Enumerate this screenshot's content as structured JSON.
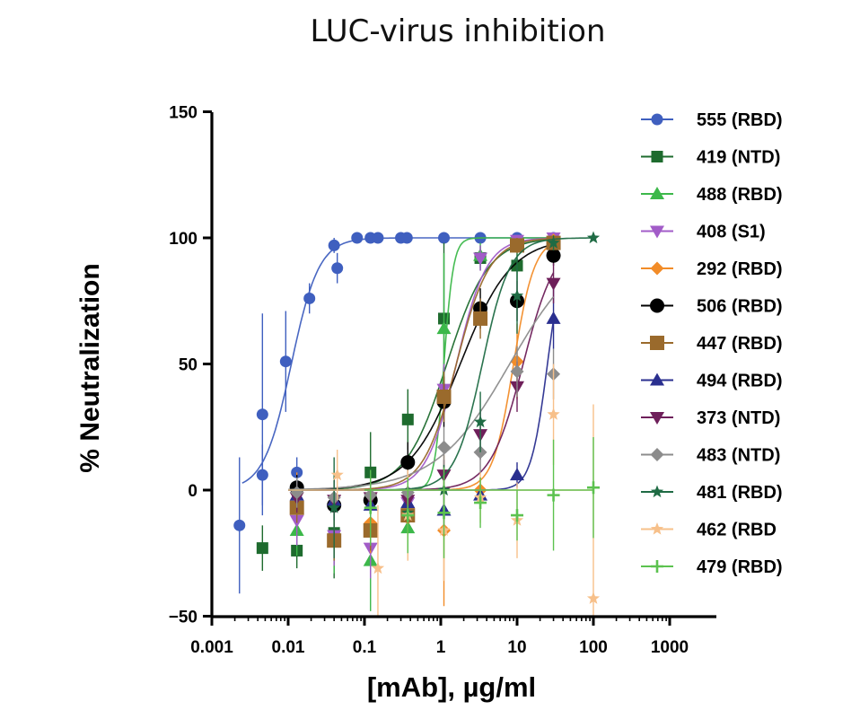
{
  "chart_data": {
    "type": "scatter",
    "title": "LUC-virus inhibition",
    "xlabel": "[mAb], µg/ml",
    "ylabel": "% Neutralization",
    "xscale": "log",
    "xlim": [
      0.001,
      1000
    ],
    "ylim": [
      -50,
      150
    ],
    "xticks": [
      {
        "value": 0.001,
        "label": "0.001"
      },
      {
        "value": 0.01,
        "label": "0.01"
      },
      {
        "value": 0.1,
        "label": "0.1"
      },
      {
        "value": 1,
        "label": "1"
      },
      {
        "value": 10,
        "label": "10"
      },
      {
        "value": 100,
        "label": "100"
      },
      {
        "value": 1000,
        "label": "1000"
      }
    ],
    "yticks": [
      {
        "value": -50,
        "label": "−50"
      },
      {
        "value": 0,
        "label": "0"
      },
      {
        "value": 50,
        "label": "50"
      },
      {
        "value": 100,
        "label": "100"
      },
      {
        "value": 150,
        "label": "150"
      }
    ],
    "legend_position": "right",
    "series": [
      {
        "name": "555 (RBD)",
        "color": "#3f5fbf",
        "marker": "circle",
        "ec50": 0.011,
        "hill": 2.4,
        "fit_range": [
          0.0025,
          30
        ],
        "points": [
          [
            0.0023,
            -14,
            27
          ],
          [
            0.0046,
            6,
            12
          ],
          [
            0.0046,
            30,
            40
          ],
          [
            0.0093,
            51,
            20
          ],
          [
            0.013,
            7,
            6
          ],
          [
            0.019,
            76,
            6
          ],
          [
            0.04,
            97,
            3
          ],
          [
            0.044,
            88,
            6
          ],
          [
            0.08,
            100,
            1
          ],
          [
            0.12,
            100,
            1
          ],
          [
            0.15,
            100,
            1
          ],
          [
            0.3,
            100,
            1
          ],
          [
            0.36,
            100,
            1
          ],
          [
            1.1,
            100,
            1
          ],
          [
            3.3,
            100,
            1
          ],
          [
            10,
            100,
            1
          ],
          [
            30,
            100,
            1
          ]
        ]
      },
      {
        "name": "419 (NTD)",
        "color": "#1e6b2e",
        "marker": "square",
        "ec50": 1.2,
        "hill": 1.6,
        "fit_range": [
          0.01,
          30
        ],
        "points": [
          [
            0.0046,
            -23,
            9
          ],
          [
            0.013,
            -24,
            7
          ],
          [
            0.04,
            -17,
            18
          ],
          [
            0.12,
            7,
            16
          ],
          [
            0.37,
            28,
            12
          ],
          [
            1.1,
            68,
            30
          ],
          [
            3.3,
            92,
            5
          ],
          [
            10,
            89,
            6
          ],
          [
            30,
            98,
            3
          ]
        ]
      },
      {
        "name": "488 (RBD)",
        "color": "#3cb84a",
        "marker": "triangle-up",
        "ec50": 1.1,
        "hill": 7,
        "fit_range": [
          0.01,
          30
        ],
        "points": [
          [
            0.013,
            -16,
            10
          ],
          [
            0.04,
            -20,
            13
          ],
          [
            0.12,
            -28,
            20
          ],
          [
            0.37,
            -15,
            10
          ],
          [
            1.1,
            64,
            30
          ],
          [
            3.3,
            93,
            5
          ],
          [
            10,
            98,
            3
          ],
          [
            30,
            99,
            2
          ]
        ]
      },
      {
        "name": "408 (S1)",
        "color": "#a25cc8",
        "marker": "triangle-down",
        "ec50": 1.6,
        "hill": 2.2,
        "fit_range": [
          0.01,
          30
        ],
        "points": [
          [
            0.013,
            -12,
            10
          ],
          [
            0.04,
            -18,
            12
          ],
          [
            0.12,
            -23,
            12
          ],
          [
            0.37,
            -5,
            10
          ],
          [
            1.1,
            40,
            10
          ],
          [
            3.3,
            92,
            5
          ],
          [
            10,
            99,
            2
          ],
          [
            30,
            100,
            1
          ]
        ]
      },
      {
        "name": "292 (RBD)",
        "color": "#f28c28",
        "marker": "diamond",
        "ec50": 9,
        "hill": 3.2,
        "fit_range": [
          0.01,
          30
        ],
        "points": [
          [
            0.013,
            1,
            6
          ],
          [
            0.04,
            -6,
            8
          ],
          [
            0.12,
            -13,
            12
          ],
          [
            0.37,
            -11,
            10
          ],
          [
            1.1,
            -16,
            30
          ],
          [
            3.3,
            0,
            5
          ],
          [
            10,
            51,
            15
          ],
          [
            30,
            99,
            2
          ]
        ]
      },
      {
        "name": "506 (RBD)",
        "color": "#000000",
        "marker": "circle-large",
        "ec50": 1.8,
        "hill": 1.3,
        "fit_range": [
          0.01,
          30
        ],
        "points": [
          [
            0.013,
            1,
            5
          ],
          [
            0.04,
            -6,
            6
          ],
          [
            0.12,
            -4,
            6
          ],
          [
            0.37,
            11,
            8
          ],
          [
            1.1,
            35,
            10
          ],
          [
            3.3,
            72,
            8
          ],
          [
            10,
            75,
            8
          ],
          [
            30,
            93,
            4
          ]
        ]
      },
      {
        "name": "447 (RBD)",
        "color": "#9a6a2c",
        "marker": "square-large",
        "ec50": 1.6,
        "hill": 2.0,
        "fit_range": [
          0.01,
          30
        ],
        "points": [
          [
            0.013,
            -7,
            6
          ],
          [
            0.04,
            -20,
            8
          ],
          [
            0.12,
            -16,
            8
          ],
          [
            0.37,
            -10,
            6
          ],
          [
            1.1,
            37,
            10
          ],
          [
            3.3,
            68,
            8
          ],
          [
            10,
            97,
            3
          ],
          [
            30,
            98,
            2
          ]
        ]
      },
      {
        "name": "494 (RBD)",
        "color": "#2a2f8f",
        "marker": "triangle-up",
        "ec50": 25,
        "hill": 4,
        "fit_range": [
          0.01,
          30
        ],
        "points": [
          [
            0.013,
            -2,
            6
          ],
          [
            0.04,
            -4,
            8
          ],
          [
            0.12,
            -6,
            6
          ],
          [
            0.37,
            -5,
            6
          ],
          [
            1.1,
            -8,
            8
          ],
          [
            3.3,
            -2,
            4
          ],
          [
            10,
            6,
            5
          ],
          [
            30,
            68,
            12
          ]
        ]
      },
      {
        "name": "373 (NTD)",
        "color": "#6e1f5a",
        "marker": "triangle-down",
        "ec50": 12,
        "hill": 2.0,
        "fit_range": [
          0.01,
          30
        ],
        "points": [
          [
            0.013,
            -3,
            6
          ],
          [
            0.04,
            -4,
            8
          ],
          [
            0.12,
            -3,
            6
          ],
          [
            0.37,
            -4,
            6
          ],
          [
            1.1,
            6,
            6
          ],
          [
            3.3,
            22,
            10
          ],
          [
            10,
            41,
            10
          ],
          [
            30,
            82,
            8
          ]
        ]
      },
      {
        "name": "483 (NTD)",
        "color": "#8c8c8c",
        "marker": "diamond",
        "ec50": 8,
        "hill": 0.9,
        "fit_range": [
          0.01,
          30
        ],
        "points": [
          [
            0.013,
            -1,
            6
          ],
          [
            0.04,
            -3,
            6
          ],
          [
            0.12,
            -2,
            6
          ],
          [
            0.37,
            -1,
            6
          ],
          [
            1.1,
            17,
            8
          ],
          [
            3.3,
            15,
            8
          ],
          [
            10,
            47,
            10
          ],
          [
            30,
            46,
            10
          ]
        ]
      },
      {
        "name": "481 (RBD)",
        "color": "#1f6b44",
        "marker": "star",
        "ec50": 3.5,
        "hill": 2.4,
        "fit_range": [
          0.01,
          100
        ],
        "points": [
          [
            0.04,
            -7,
            20
          ],
          [
            0.37,
            -9,
            8
          ],
          [
            1.1,
            0,
            10
          ],
          [
            3.3,
            27,
            12
          ],
          [
            10,
            77,
            15
          ],
          [
            30,
            98,
            3
          ],
          [
            100,
            100,
            1
          ]
        ]
      },
      {
        "name": "462 (RBD",
        "color": "#f7c08a",
        "marker": "star",
        "ec50": null,
        "hill": null,
        "fit_range": [
          0.01,
          100
        ],
        "points": [
          [
            0.044,
            6,
            10
          ],
          [
            0.15,
            -31,
            25
          ],
          [
            0.37,
            -10,
            18
          ],
          [
            1.1,
            -16,
            20
          ],
          [
            3.3,
            -3,
            10
          ],
          [
            10,
            -12,
            15
          ],
          [
            30,
            30,
            20
          ],
          [
            100,
            -43,
            77
          ]
        ]
      },
      {
        "name": "479 (RBD)",
        "color": "#5cc24f",
        "marker": "plus",
        "ec50": null,
        "hill": null,
        "fit_range": [
          0.1,
          100
        ],
        "points": [
          [
            0.12,
            -7,
            15
          ],
          [
            0.37,
            -10,
            15
          ],
          [
            1.1,
            -9,
            18
          ],
          [
            3.3,
            -5,
            10
          ],
          [
            10,
            -10,
            10
          ],
          [
            30,
            -2,
            22
          ],
          [
            100,
            1,
            20
          ]
        ]
      }
    ]
  }
}
